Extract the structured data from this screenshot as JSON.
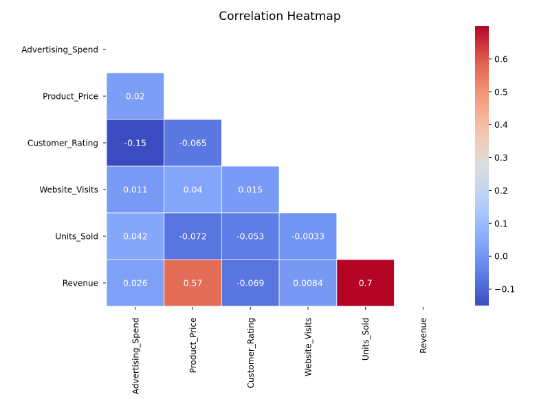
{
  "chart_data": {
    "type": "heatmap",
    "title": "Correlation Heatmap",
    "variables": [
      "Advertising_Spend",
      "Product_Price",
      "Customer_Rating",
      "Website_Visits",
      "Units_Sold",
      "Revenue"
    ],
    "mask": "upper-triangle-including-diagonal",
    "cells": [
      {
        "row": "Product_Price",
        "col": "Advertising_Spend",
        "value": 0.02,
        "label": "0.02"
      },
      {
        "row": "Customer_Rating",
        "col": "Advertising_Spend",
        "value": -0.15,
        "label": "-0.15"
      },
      {
        "row": "Customer_Rating",
        "col": "Product_Price",
        "value": -0.065,
        "label": "-0.065"
      },
      {
        "row": "Website_Visits",
        "col": "Advertising_Spend",
        "value": 0.011,
        "label": "0.011"
      },
      {
        "row": "Website_Visits",
        "col": "Product_Price",
        "value": 0.04,
        "label": "0.04"
      },
      {
        "row": "Website_Visits",
        "col": "Customer_Rating",
        "value": 0.015,
        "label": "0.015"
      },
      {
        "row": "Units_Sold",
        "col": "Advertising_Spend",
        "value": 0.042,
        "label": "0.042"
      },
      {
        "row": "Units_Sold",
        "col": "Product_Price",
        "value": -0.072,
        "label": "-0.072"
      },
      {
        "row": "Units_Sold",
        "col": "Customer_Rating",
        "value": -0.053,
        "label": "-0.053"
      },
      {
        "row": "Units_Sold",
        "col": "Website_Visits",
        "value": -0.0033,
        "label": "-0.0033"
      },
      {
        "row": "Revenue",
        "col": "Advertising_Spend",
        "value": 0.026,
        "label": "0.026"
      },
      {
        "row": "Revenue",
        "col": "Product_Price",
        "value": 0.57,
        "label": "0.57"
      },
      {
        "row": "Revenue",
        "col": "Customer_Rating",
        "value": -0.069,
        "label": "-0.069"
      },
      {
        "row": "Revenue",
        "col": "Website_Visits",
        "value": 0.0084,
        "label": "0.0084"
      },
      {
        "row": "Revenue",
        "col": "Units_Sold",
        "value": 0.7,
        "label": "0.7"
      }
    ],
    "colormap": "coolwarm",
    "colorbar": {
      "range": [
        -0.15,
        0.7
      ],
      "ticks": [
        -0.1,
        0.0,
        0.1,
        0.2,
        0.3,
        0.4,
        0.5,
        0.6
      ],
      "tick_labels": [
        "−0.1",
        "0.0",
        "0.1",
        "0.2",
        "0.3",
        "0.4",
        "0.5",
        "0.6"
      ]
    },
    "grid": false,
    "cell_border_color": "#ffffff"
  }
}
